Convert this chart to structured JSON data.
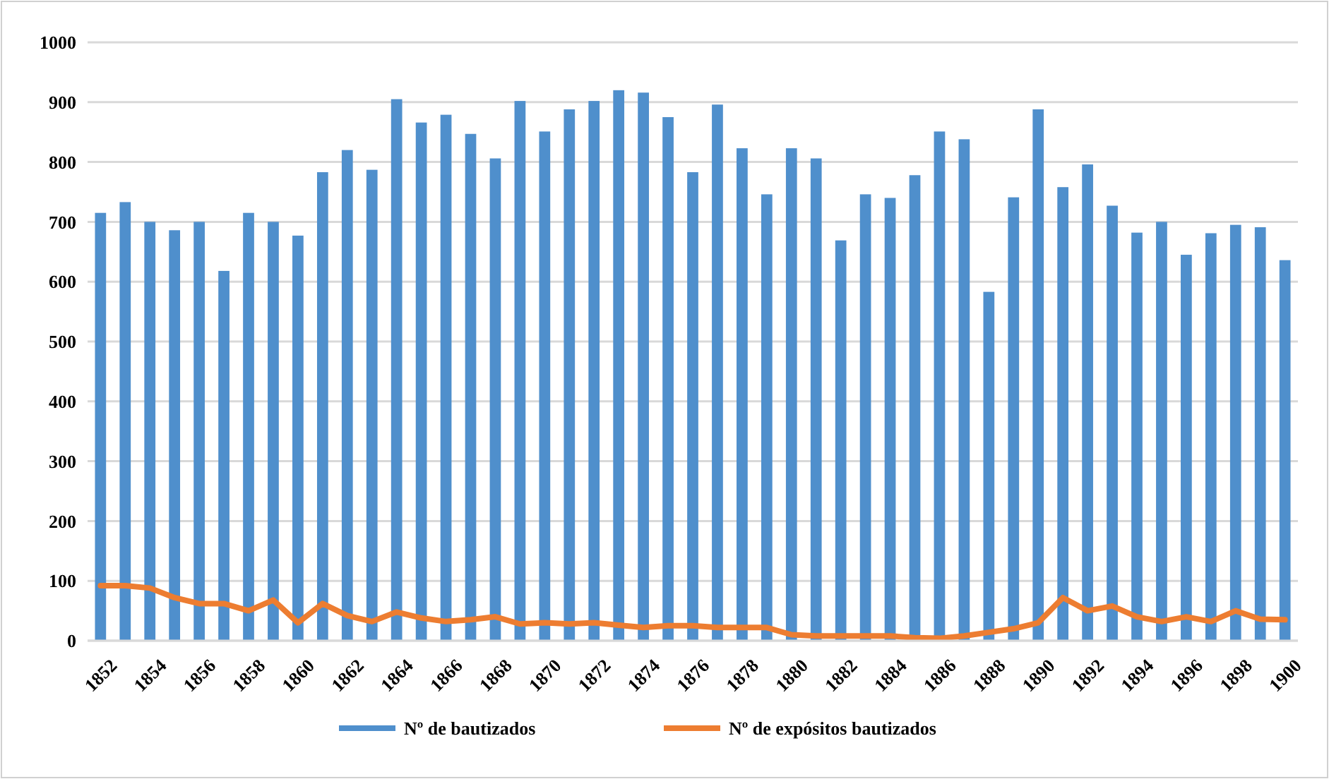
{
  "chart_data": {
    "type": "bar",
    "categories": [
      "1852",
      null,
      "1854",
      null,
      "1856",
      null,
      "1858",
      null,
      "1860",
      null,
      "1862",
      null,
      "1864",
      null,
      "1866",
      null,
      "1868",
      null,
      "1870",
      null,
      "1872",
      null,
      "1874",
      null,
      "1876",
      null,
      "1878",
      null,
      "1880",
      null,
      "1882",
      null,
      "1884",
      null,
      "1886",
      null,
      "1888",
      null,
      "1890",
      null,
      "1892",
      null,
      "1894",
      null,
      "1896",
      null,
      "1898",
      null,
      "1900"
    ],
    "series": [
      {
        "name": "Nº de bautizados",
        "color": "#4f8fcc",
        "values": [
          715,
          733,
          700,
          686,
          700,
          618,
          715,
          700,
          677,
          783,
          820,
          787,
          905,
          866,
          879,
          847,
          806,
          902,
          851,
          888,
          902,
          920,
          916,
          875,
          783,
          896,
          823,
          746,
          823,
          806,
          669,
          746,
          740,
          778,
          851,
          838,
          583,
          741,
          888,
          758,
          796,
          727,
          682,
          700,
          645,
          681,
          695,
          691,
          636
        ]
      },
      {
        "name": "Nº de expósitos bautizados",
        "type": "line",
        "color": "#ed7d31",
        "values": [
          92,
          92,
          88,
          72,
          62,
          62,
          50,
          68,
          30,
          62,
          42,
          32,
          48,
          38,
          32,
          35,
          40,
          28,
          30,
          28,
          30,
          26,
          22,
          25,
          25,
          22,
          22,
          22,
          10,
          8,
          8,
          8,
          8,
          5,
          4,
          8,
          14,
          20,
          30,
          72,
          50,
          58,
          40,
          32,
          40,
          32,
          50,
          36,
          35
        ]
      }
    ],
    "ylim": [
      0,
      1000
    ],
    "yticks": [
      0,
      100,
      200,
      300,
      400,
      500,
      600,
      700,
      800,
      900,
      1000
    ],
    "grid": "y",
    "legend": "bottom",
    "marker": "none",
    "line_style": "solid"
  }
}
